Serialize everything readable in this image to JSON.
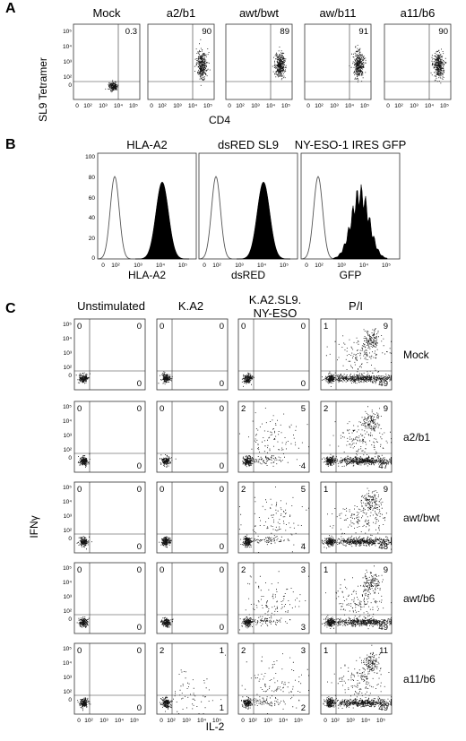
{
  "panelA": {
    "letter": "A",
    "ylabel": "SL9 Tetramer",
    "xlabel": "CD4",
    "yticks": [
      "10⁵",
      "10⁴",
      "10³",
      "10²",
      "0"
    ],
    "xticks": [
      "0",
      "10²",
      "10³",
      "10⁴",
      "10⁵"
    ],
    "plots": [
      {
        "title": "Mock",
        "value": "0.3"
      },
      {
        "title": "a2/b1",
        "value": "90"
      },
      {
        "title": "awt/bwt",
        "value": "89"
      },
      {
        "title": "aw/b11",
        "value": "91"
      },
      {
        "title": "a11/b6",
        "value": "90"
      }
    ]
  },
  "panelB": {
    "letter": "B",
    "yticks": [
      "100",
      "80",
      "60",
      "40",
      "20",
      "0"
    ],
    "xticks": [
      "0",
      "10²",
      "10³",
      "10⁴",
      "10⁵"
    ],
    "plots": [
      {
        "title": "HLA-A2",
        "xlabel": "HLA-A2"
      },
      {
        "title": "dsRED SL9",
        "xlabel": "dsRED"
      },
      {
        "title": "NY-ESO-1 IRES GFP",
        "xlabel": "GFP"
      }
    ]
  },
  "panelC": {
    "letter": "C",
    "ylabel": "IFNγ",
    "xlabel": "IL-2",
    "yticks": [
      "10⁵",
      "10⁴",
      "10³",
      "10²",
      "0"
    ],
    "xticks": [
      "0",
      "10²",
      "10³",
      "10⁴",
      "10⁵"
    ],
    "columns": [
      "Unstimulated",
      "K.A2",
      "K.A2.SL9.",
      "P/I"
    ],
    "column3_line2": "NY-ESO",
    "rows": [
      {
        "label": "Mock",
        "quadrants": [
          [
            "0",
            "0",
            "0"
          ],
          [
            "0",
            "0",
            "0"
          ],
          [
            "0",
            "0",
            "0"
          ],
          [
            "1",
            "9",
            "49"
          ]
        ]
      },
      {
        "label": "a2/b1",
        "quadrants": [
          [
            "0",
            "0",
            "0"
          ],
          [
            "0",
            "0",
            "0"
          ],
          [
            "2",
            "5",
            "4"
          ],
          [
            "2",
            "9",
            "47"
          ]
        ]
      },
      {
        "label": "awt/bwt",
        "quadrants": [
          [
            "0",
            "0",
            "0"
          ],
          [
            "0",
            "0",
            "0"
          ],
          [
            "2",
            "5",
            "4"
          ],
          [
            "1",
            "9",
            "48"
          ]
        ]
      },
      {
        "label": "awt/b6",
        "quadrants": [
          [
            "0",
            "0",
            "0"
          ],
          [
            "0",
            "0",
            "0"
          ],
          [
            "2",
            "3",
            "3"
          ],
          [
            "1",
            "9",
            "49"
          ]
        ]
      },
      {
        "label": "a11/b6",
        "quadrants": [
          [
            "0",
            "0",
            "0"
          ],
          [
            "2",
            "1",
            "1"
          ],
          [
            "2",
            "3",
            "2"
          ],
          [
            "1",
            "11",
            "49"
          ]
        ]
      }
    ]
  }
}
